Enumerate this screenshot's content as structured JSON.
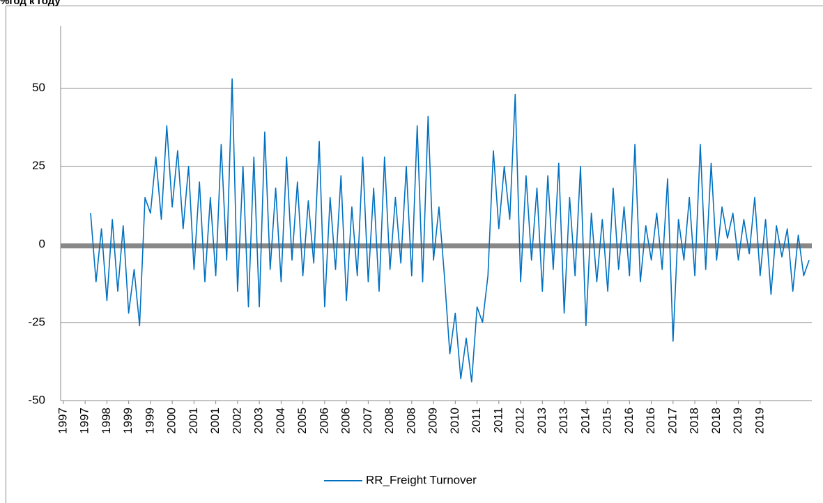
{
  "chart_data": {
    "type": "line",
    "title": "%год к году",
    "categories": [
      "1997",
      null,
      null,
      null,
      "1997",
      null,
      null,
      null,
      "1998",
      null,
      null,
      null,
      "1999",
      null,
      null,
      null,
      "1999",
      null,
      null,
      null,
      "2000",
      null,
      null,
      null,
      "2001",
      null,
      null,
      null,
      "2001",
      null,
      null,
      null,
      "2002",
      null,
      null,
      null,
      "2003",
      null,
      null,
      null,
      "2004",
      null,
      null,
      null,
      "2005",
      null,
      null,
      null,
      "2006",
      null,
      null,
      null,
      "2006",
      null,
      null,
      null,
      "2007",
      null,
      null,
      null,
      "2008",
      null,
      null,
      null,
      "2008",
      null,
      null,
      null,
      "2009",
      null,
      null,
      null,
      "2010",
      null,
      null,
      null,
      "2011",
      null,
      null,
      null,
      "2011",
      null,
      null,
      null,
      "2012",
      null,
      null,
      null,
      "2013",
      null,
      null,
      null,
      "2013",
      null,
      null,
      null,
      "2014",
      null,
      null,
      null,
      "2015",
      null,
      null,
      null,
      "2016",
      null,
      null,
      null,
      "2016",
      null,
      null,
      null,
      "2017",
      null,
      null,
      null,
      "2018",
      null,
      null,
      null,
      "2018",
      null,
      null,
      null,
      "2019",
      null,
      null,
      null,
      "2019",
      null,
      null,
      null,
      null,
      null,
      null,
      null,
      null,
      null
    ],
    "series": [
      {
        "name": "RR_Freight Turnover",
        "color": "#0070c0",
        "values": [
          null,
          null,
          null,
          null,
          null,
          10,
          -12,
          5,
          -18,
          8,
          -15,
          6,
          -22,
          -8,
          -26,
          15,
          10,
          28,
          8,
          38,
          12,
          30,
          5,
          25,
          -8,
          20,
          -12,
          15,
          -10,
          32,
          -5,
          53,
          -15,
          25,
          -20,
          28,
          -20,
          36,
          -8,
          18,
          -12,
          28,
          -5,
          20,
          -10,
          14,
          -6,
          33,
          -20,
          15,
          -8,
          22,
          -18,
          12,
          -10,
          28,
          -12,
          18,
          -15,
          28,
          -8,
          15,
          -6,
          25,
          -10,
          38,
          -12,
          41,
          -5,
          12,
          -10,
          -35,
          -22,
          -43,
          -30,
          -44,
          -20,
          -25,
          -10,
          30,
          5,
          25,
          8,
          48,
          -12,
          22,
          -5,
          18,
          -15,
          22,
          -8,
          26,
          -22,
          15,
          -10,
          25,
          -26,
          10,
          -12,
          8,
          -15,
          18,
          -8,
          12,
          -10,
          32,
          -12,
          6,
          -5,
          10,
          -8,
          21,
          -31,
          8,
          -5,
          15,
          -10,
          32,
          -8,
          26,
          -5,
          12,
          2,
          10,
          -5,
          8,
          -3,
          15,
          -10,
          8,
          -16,
          6,
          -4,
          5,
          -15,
          3,
          -10,
          -5
        ]
      }
    ],
    "ylim": [
      -50,
      70
    ],
    "yticks": [
      -50,
      -25,
      0,
      25,
      50
    ],
    "grid": true,
    "zero_line": true,
    "legend": "bottom"
  }
}
